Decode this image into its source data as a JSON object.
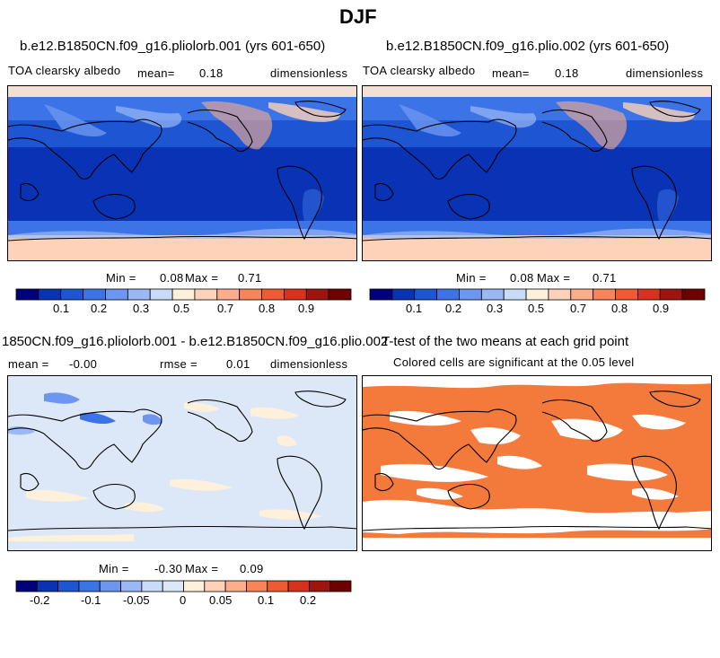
{
  "page": {
    "title": "DJF"
  },
  "colors": {
    "albedo_scale": [
      "#00007a",
      "#0a32b4",
      "#1e55d2",
      "#3c73e6",
      "#6c96f0",
      "#9ab8f5",
      "#c8dcf9",
      "#fff0dc",
      "#fdd2b8",
      "#fcae8c",
      "#f8845a",
      "#f05a32",
      "#d8321e",
      "#a01410",
      "#6e0000"
    ],
    "diff_scale": [
      "#00007a",
      "#0a32b4",
      "#1e55d2",
      "#3c73e6",
      "#6c96f0",
      "#9ab8f5",
      "#c8dcf9",
      "#dce8f8",
      "#fff0dc",
      "#fdd2b8",
      "#fcae8c",
      "#f8845a",
      "#f05a32",
      "#d8321e",
      "#a01410",
      "#6e0000"
    ],
    "significant": "#f47a3c"
  },
  "chart_data": [
    {
      "type": "heatmap",
      "title": "b.e12.B1850CN.f09_g16.pliolorb.001 (yrs 601-650)",
      "variable": "TOA clearsky albedo",
      "mean_label": "mean=",
      "mean_value": "0.18",
      "units": "dimensionless",
      "min_label": "Min =",
      "min_value": "0.08",
      "max_label": "Max =",
      "max_value": "0.71",
      "colorbar_ticks": [
        "0.1",
        "0.2",
        "0.3",
        "0.5",
        "0.7",
        "0.8",
        "0.9"
      ]
    },
    {
      "type": "heatmap",
      "title": "b.e12.B1850CN.f09_g16.plio.002 (yrs 601-650)",
      "variable": "TOA clearsky albedo",
      "mean_label": "mean=",
      "mean_value": "0.18",
      "units": "dimensionless",
      "min_label": "Min =",
      "min_value": "0.08",
      "max_label": "Max =",
      "max_value": "0.71",
      "colorbar_ticks": [
        "0.1",
        "0.2",
        "0.3",
        "0.5",
        "0.7",
        "0.8",
        "0.9"
      ]
    },
    {
      "type": "heatmap",
      "title": "1850CN.f09_g16.pliolorb.001 - b.e12.B1850CN.f09_g16.plio.002",
      "mean_label": "mean =",
      "mean_value": "-0.00",
      "rmse_label": "rmse =",
      "rmse_value": "0.01",
      "units": "dimensionless",
      "min_label": "Min =",
      "min_value": "-0.30",
      "max_label": "Max =",
      "max_value": "0.09",
      "colorbar_ticks": [
        "-0.2",
        "-0.1",
        "-0.05",
        "0",
        "0.05",
        "0.1",
        "0.2"
      ]
    },
    {
      "type": "heatmap",
      "title": "T-test of the two means at each grid point",
      "subtitle": "Colored cells are significant at the 0.05 level"
    }
  ]
}
